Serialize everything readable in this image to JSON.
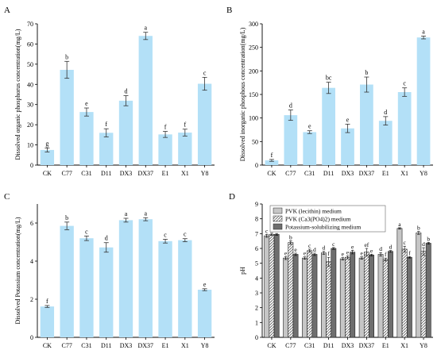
{
  "chart_data": [
    {
      "panel": "A",
      "type": "bar",
      "ylabel": "Dissolved organic phosphorus concentration(mg/L)",
      "ylim": [
        0,
        70
      ],
      "yticks": [
        0,
        10,
        20,
        30,
        40,
        50,
        60,
        70
      ],
      "categories": [
        "CK",
        "C77",
        "C31",
        "D11",
        "DX3",
        "DX37",
        "E1",
        "X1",
        "Y8"
      ],
      "values": [
        7.5,
        47.2,
        26.3,
        16,
        31.9,
        64,
        15.2,
        16.1,
        40.3
      ],
      "errors": [
        1,
        4.2,
        2,
        2,
        2.5,
        1.8,
        1.5,
        1.7,
        3.2
      ],
      "significance": [
        "g",
        "b",
        "e",
        "f",
        "d",
        "a",
        "f",
        "f",
        "c"
      ]
    },
    {
      "panel": "B",
      "type": "bar",
      "ylabel": "Dissolved inorganic phosphous concentration(mg/L)",
      "ylim": [
        0,
        300
      ],
      "yticks": [
        0,
        50,
        100,
        150,
        200,
        250,
        300
      ],
      "categories": [
        "CK",
        "C77",
        "C31",
        "D11",
        "DX3",
        "DX37",
        "E1",
        "X1",
        "Y8"
      ],
      "values": [
        10,
        106,
        70,
        164,
        78,
        171,
        94,
        155,
        271
      ],
      "errors": [
        2,
        11,
        3,
        12,
        9,
        16,
        9,
        9,
        3
      ],
      "significance": [
        "f",
        "d",
        "e",
        "bc",
        "e",
        "b",
        "d",
        "c",
        "a"
      ]
    },
    {
      "panel": "C",
      "type": "bar",
      "ylabel": "Dissolved Potassium concentration(mg/L)",
      "ylim": [
        0,
        7
      ],
      "yticks": [
        0,
        2,
        4,
        6
      ],
      "categories": [
        "CK",
        "C77",
        "C31",
        "D11",
        "DX3",
        "DX37",
        "E1",
        "X1",
        "Y8"
      ],
      "values": [
        1.62,
        5.85,
        5.2,
        4.72,
        6.15,
        6.2,
        5.05,
        5.1,
        2.5
      ],
      "errors": [
        0.05,
        0.2,
        0.12,
        0.25,
        0.1,
        0.08,
        0.1,
        0.08,
        0.05
      ],
      "significance": [
        "f",
        "b",
        "c",
        "d",
        "a",
        "a",
        "c",
        "c",
        "e"
      ]
    },
    {
      "panel": "D",
      "type": "bar",
      "ylabel": "pH",
      "ylim": [
        0,
        9
      ],
      "yticks": [
        0,
        1,
        2,
        3,
        4,
        5,
        6,
        7,
        8,
        9
      ],
      "categories": [
        "CK",
        "C77",
        "C31",
        "D11",
        "DX3",
        "DX37",
        "E1",
        "X1",
        "Y8"
      ],
      "legend_position": "top",
      "series": [
        {
          "name": "PVK (lecithin) medium",
          "color": "#c6c6c6",
          "values": [
            6.85,
            5.35,
            5.35,
            5.7,
            5.3,
            5.35,
            5.6,
            7.35,
            7.05
          ],
          "errors": [
            0.1,
            0.1,
            0.08,
            0.1,
            0.08,
            0.08,
            0.12,
            0.05,
            0.1
          ],
          "significance": [
            "c",
            "e",
            "e",
            "d",
            "e",
            "e",
            "d",
            "a",
            "b"
          ]
        },
        {
          "name": "PVK (Ca3(PO4)2) medium",
          "color": "#ffffff",
          "values": [
            6.95,
            6.4,
            5.85,
            5.1,
            5.4,
            5.75,
            5.25,
            5.95,
            5.8
          ],
          "errors": [
            0.08,
            0.12,
            0.1,
            0.3,
            0.1,
            0.25,
            0.1,
            0.2,
            0.25
          ],
          "significance": [
            "a",
            "b",
            "c",
            "f",
            "e",
            "ef",
            "f",
            "c",
            "d"
          ]
        },
        {
          "name": "Potassium-solubilizing medium",
          "color": "#6e6e6e",
          "values": [
            6.95,
            5.6,
            5.6,
            6.0,
            5.75,
            5.55,
            5.8,
            5.4,
            6.35
          ],
          "errors": [
            0.06,
            0.08,
            0.08,
            0.06,
            0.12,
            0.06,
            0.06,
            0.05,
            0.06
          ],
          "significance": [
            "a",
            "e",
            "d",
            "c",
            "e",
            "e",
            "d",
            "f",
            "b"
          ]
        }
      ]
    }
  ]
}
